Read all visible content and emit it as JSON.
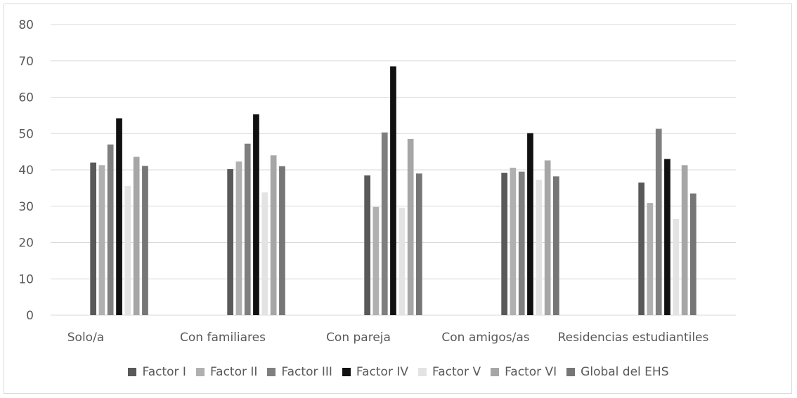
{
  "chart_data": {
    "type": "bar",
    "title": "",
    "xlabel": "",
    "ylabel": "",
    "ylim": [
      0,
      80
    ],
    "yticks": [
      0,
      10,
      20,
      30,
      40,
      50,
      60,
      70,
      80
    ],
    "grid": true,
    "legend_position": "bottom",
    "categories": [
      "Solo/a",
      "Con familiares",
      "Con pareja",
      "Con amigos/as",
      "Residencias estudiantiles"
    ],
    "series": [
      {
        "name": "Factor I",
        "color": "#595959",
        "values": [
          42,
          40.2,
          38.5,
          39.2,
          36.5
        ]
      },
      {
        "name": "Factor II",
        "color": "#b0b0b0",
        "values": [
          41.3,
          42.3,
          29.8,
          40.6,
          30.9
        ]
      },
      {
        "name": "Factor III",
        "color": "#7f7f7f",
        "values": [
          47,
          47.2,
          50.3,
          39.5,
          51.3
        ]
      },
      {
        "name": "Factor IV",
        "color": "#111111",
        "values": [
          54.2,
          55.3,
          68.5,
          50.1,
          43
        ]
      },
      {
        "name": "Factor V",
        "color": "#e3e3e3",
        "values": [
          35.6,
          33.8,
          29.6,
          37.3,
          26.5
        ]
      },
      {
        "name": "Factor VI",
        "color": "#a6a6a6",
        "values": [
          43.6,
          44,
          48.5,
          42.6,
          41.3
        ]
      },
      {
        "name": "Global del EHS",
        "color": "#767676",
        "values": [
          41.1,
          41,
          39,
          38.2,
          33.5
        ]
      }
    ]
  }
}
